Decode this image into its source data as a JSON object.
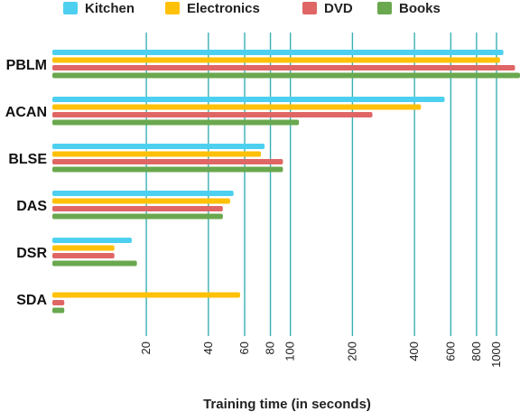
{
  "chart_data": {
    "type": "bar",
    "orientation": "horizontal",
    "scale": "log",
    "categories": [
      "PBLM",
      "ACAN",
      "BLSE",
      "DAS",
      "DSR",
      "SDA"
    ],
    "series": [
      {
        "name": "Kitchen",
        "color": "#4dd0ef",
        "values": [
          1080,
          560,
          75,
          53,
          17,
          null
        ]
      },
      {
        "name": "Electronics",
        "color": "#ffc107",
        "values": [
          1040,
          430,
          72,
          51,
          14,
          57
        ]
      },
      {
        "name": "DVD",
        "color": "#e06666",
        "values": [
          1230,
          250,
          92,
          47,
          14,
          8
        ]
      },
      {
        "name": "Books",
        "color": "#6aa84f",
        "values": [
          1300,
          110,
          92,
          47,
          18,
          8
        ]
      }
    ],
    "xticks": [
      20,
      40,
      60,
      80,
      100,
      200,
      400,
      600,
      800,
      1000
    ],
    "xlabel": "Training time (in seconds)",
    "xlim": [
      7,
      1300
    ],
    "grid": true,
    "legend_position": "top",
    "gridline_color": "#3aafb4"
  }
}
